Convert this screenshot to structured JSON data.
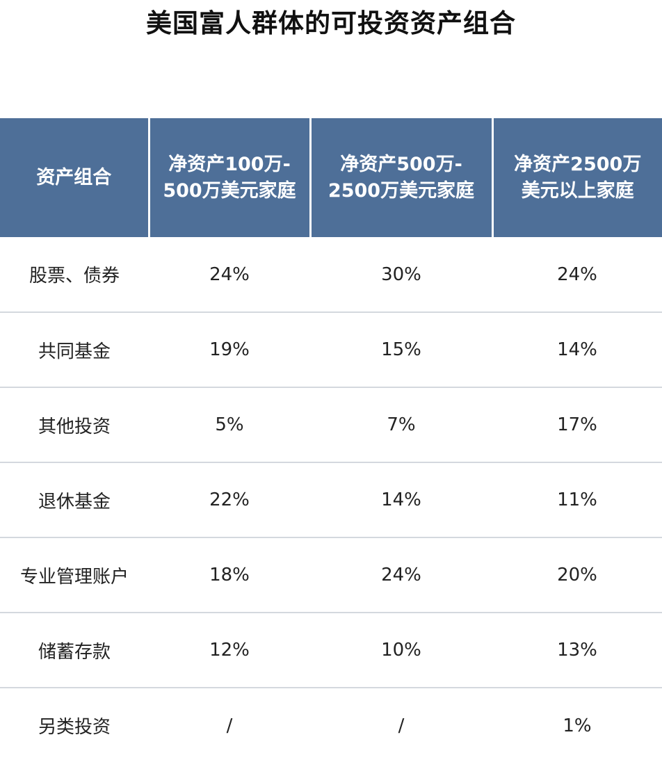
{
  "title": "美国富人群体的可投资资产组合",
  "chart_data": {
    "type": "table",
    "title": "美国富人群体的可投资资产组合",
    "columns": [
      "资产组合",
      "净资产100万-\n500万美元家庭",
      "净资产500万-\n2500万美元家庭",
      "净资产2500万\n美元以上家庭"
    ],
    "rows": [
      {
        "category": "股票、债券",
        "values": [
          "24%",
          "30%",
          "24%"
        ]
      },
      {
        "category": "共同基金",
        "values": [
          "19%",
          "15%",
          "14%"
        ]
      },
      {
        "category": "其他投资",
        "values": [
          "5%",
          "7%",
          "17%"
        ]
      },
      {
        "category": "退休基金",
        "values": [
          "22%",
          "14%",
          "11%"
        ]
      },
      {
        "category": "专业管理账户",
        "values": [
          "18%",
          "24%",
          "20%"
        ]
      },
      {
        "category": "储蓄存款",
        "values": [
          "12%",
          "10%",
          "13%"
        ]
      },
      {
        "category": "另类投资",
        "values": [
          "/",
          "/",
          "1%"
        ]
      }
    ]
  },
  "colors": {
    "header_bg": "#4e6f98",
    "header_text": "#ffffff",
    "row_divider": "#d4d8de"
  }
}
